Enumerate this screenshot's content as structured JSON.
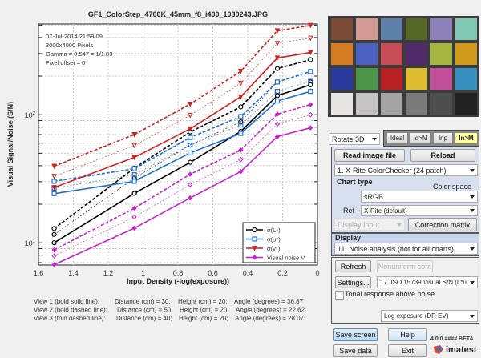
{
  "chart_data": {
    "type": "line",
    "title": "GF1_ColorStep_4700K_45mm_f8_i400_1030243.JPG",
    "xlabel": "Input Density (-log(exposure))",
    "ylabel": "Visual Signal/Noise (S/N)",
    "xlim": [
      1.6,
      0
    ],
    "x_reversed": true,
    "ylim": [
      6.7,
      510
    ],
    "yscale": "log",
    "grid": true,
    "legend_position": "bottom-right",
    "x_ticks": [
      "1.6",
      "1.4",
      "1.2",
      "1",
      "0.8",
      "0.6",
      "0.4",
      "0.2",
      "0"
    ],
    "y_ticks": [
      {
        "base": "10",
        "exp": "1",
        "value": 10
      },
      {
        "base": "10",
        "exp": "2",
        "value": 100
      }
    ],
    "annotations": [
      "07-Jul-2014 21:59:09",
      "3000x4000 Pixels",
      "Gamma = 0.547 = 1/1.83",
      "Pixel offset = 0"
    ],
    "x": [
      1.51,
      1.05,
      0.73,
      0.44,
      0.23,
      0.04
    ],
    "series": [
      {
        "name": "σ(L*)",
        "color": "#000000",
        "marker": "circle",
        "view1": [
          10,
          24.3,
          42.5,
          74,
          141,
          171
        ],
        "view2": [
          12.9,
          38.3,
          73.3,
          115,
          229,
          269
        ],
        "view3": [
          11.6,
          32,
          58,
          88,
          180,
          180
        ]
      },
      {
        "name": "σ(u*)",
        "color": "#1f6fd0",
        "marker": "square",
        "view1": [
          24.2,
          30.2,
          50.3,
          71.5,
          128,
          152
        ],
        "view2": [
          30.2,
          37.9,
          66.4,
          96.8,
          180,
          217
        ],
        "view3": [
          26.7,
          34,
          58,
          83,
          152,
          182
        ]
      },
      {
        "name": "σ(v*)",
        "color": "#d02020",
        "marker": "triangle-down",
        "view1": [
          27,
          46.4,
          77.6,
          138,
          277,
          306
        ],
        "view2": [
          39.6,
          70,
          121,
          218,
          452,
          497
        ],
        "view3": [
          33,
          57.5,
          99,
          176,
          360,
          396
        ]
      },
      {
        "name": "Visual noise V",
        "color": "#cc22cc",
        "marker": "diamond",
        "view1": [
          6.75,
          13,
          22.4,
          36,
          67.5,
          79
        ],
        "view2": [
          8.8,
          18.6,
          34.3,
          53,
          101,
          120
        ],
        "view3": [
          7.9,
          15.9,
          28.4,
          44.7,
          84.5,
          100
        ]
      }
    ],
    "views": [
      {
        "label": "View 1 (bold solid line):",
        "distance": "Distance (cm) = 30;",
        "height": "Height (cm) = 20;",
        "angle": "Angle (degrees) = 36.87"
      },
      {
        "label": "View 2 (bold dashed line):",
        "distance": "Distance (cm) = 50;",
        "height": "Height (cm) = 20;",
        "angle": "Angle (degrees) = 22.62"
      },
      {
        "label": "View 3 (thin dashed line):",
        "distance": "Distance (cm) = 40;",
        "height": "Height (cm) = 20;",
        "angle": "Angle (degrees) = 28.07"
      }
    ]
  },
  "colorchecker": [
    "#7a4a36",
    "#d29a92",
    "#5f80a8",
    "#556626",
    "#8e80b8",
    "#80c6b2",
    "#d57c22",
    "#4b60c0",
    "#c84c58",
    "#502a6a",
    "#a4b640",
    "#d09a1a",
    "#2a3a9c",
    "#4c9446",
    "#b82224",
    "#dcbc30",
    "#c0509a",
    "#3890c0",
    "#e8e4e2",
    "#c6c4c4",
    "#a4a4a4",
    "#7a7a7a",
    "#4e4e4e",
    "#222222"
  ],
  "controls": {
    "rotate_select": "Rotate 3D",
    "toggle_buttons": [
      "Ideal",
      "Id>M",
      "Inp",
      "In>M"
    ],
    "active_toggle_color": "#ffffa0",
    "read_image": "Read image file",
    "reload": "Reload",
    "chart_select": "1.  X-Rite ColorChecker (24 patch)",
    "chart_type_label": "Chart type",
    "color_space_label": "Color space",
    "color_space_select": "sRGB",
    "ref_label": "Ref",
    "ref_select": "X-Rite (default)",
    "display_input_select": "Display Input",
    "correction_matrix": "Correction matrix",
    "display_label": "Display",
    "display_select": "11. Noise analysis (not for all charts)",
    "refresh": "Refresh",
    "nonuniform": "Nonuniform corr.",
    "settings": "Settings...",
    "plot_select": "17. ISO 15739 Visual S/N (L*u...",
    "tonal_checkbox": "Tonal response above noise",
    "tonal_checked": false,
    "exposure_select": "Log exposure (DR EV)",
    "save_screen": "Save screen",
    "help": "Help",
    "save_data": "Save data",
    "exit": "Exit",
    "version": "4.0.0.#### BETA",
    "logo": "imatest"
  }
}
